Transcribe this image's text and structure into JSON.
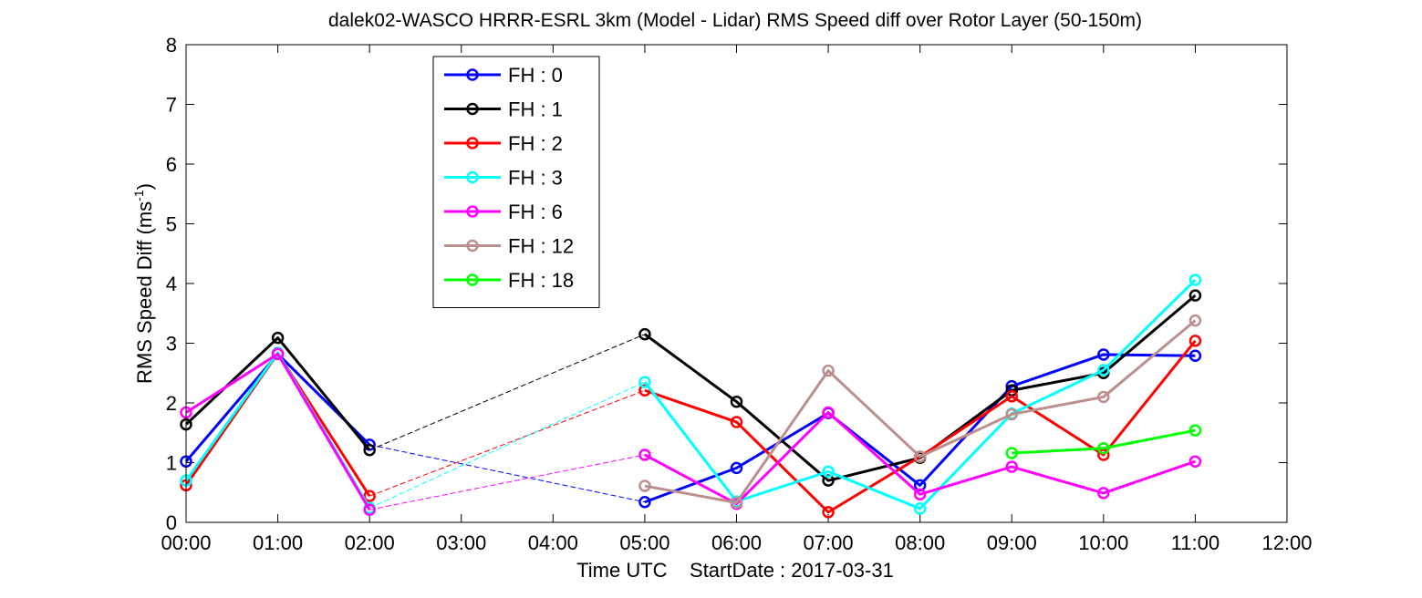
{
  "chart_data": {
    "type": "line",
    "title": "dalek02-WASCO HRRR-ESRL 3km (Model - Lidar) RMS Speed diff over Rotor Layer (50-150m)",
    "xlabel": "Time UTC    StartDate : 2017-03-31",
    "ylabel": "RMS Speed Diff (ms",
    "ylabel_sup": "-1",
    "ylabel_end": ")",
    "x_tick_labels": [
      "00:00",
      "01:00",
      "02:00",
      "03:00",
      "04:00",
      "05:00",
      "06:00",
      "07:00",
      "08:00",
      "09:00",
      "10:00",
      "11:00",
      "12:00"
    ],
    "y_tick_labels": [
      "0",
      "1",
      "2",
      "3",
      "4",
      "5",
      "6",
      "7",
      "8"
    ],
    "xlim": [
      0,
      12
    ],
    "ylim": [
      0,
      8
    ],
    "grid": false,
    "legend_position": "top-left",
    "series": [
      {
        "name": "FH : 0",
        "color": "#0000ff",
        "x": [
          0,
          1,
          2,
          5,
          6,
          7,
          8,
          9,
          10,
          11
        ],
        "y": [
          1.02,
          2.82,
          1.3,
          0.34,
          0.91,
          1.83,
          0.62,
          2.28,
          2.81,
          2.79
        ]
      },
      {
        "name": "FH : 1",
        "color": "#000000",
        "x": [
          0,
          1,
          2,
          5,
          6,
          7,
          8,
          9,
          10,
          11
        ],
        "y": [
          1.64,
          3.09,
          1.21,
          3.15,
          2.02,
          0.7,
          1.08,
          2.21,
          2.5,
          3.8
        ]
      },
      {
        "name": "FH : 2",
        "color": "#ff0000",
        "x": [
          0,
          1,
          2,
          5,
          6,
          7,
          8,
          9,
          10,
          11
        ],
        "y": [
          0.62,
          2.83,
          0.44,
          2.21,
          1.68,
          0.17,
          1.1,
          2.11,
          1.13,
          3.04
        ]
      },
      {
        "name": "FH : 3",
        "color": "#00ffff",
        "x": [
          0,
          1,
          2,
          5,
          6,
          7,
          8,
          9,
          10,
          11
        ],
        "y": [
          0.7,
          2.84,
          0.24,
          2.35,
          0.35,
          0.85,
          0.23,
          1.82,
          2.55,
          4.06
        ]
      },
      {
        "name": "FH : 6",
        "color": "#ff00ff",
        "x": [
          0,
          1,
          2,
          5,
          6,
          7,
          8,
          9,
          10,
          11
        ],
        "y": [
          1.84,
          2.82,
          0.21,
          1.13,
          0.31,
          1.84,
          0.47,
          0.93,
          0.49,
          1.02
        ]
      },
      {
        "name": "FH : 12",
        "color": "#bc8f8f",
        "x": [
          5,
          6,
          7,
          8,
          9,
          10,
          11
        ],
        "y": [
          0.61,
          0.33,
          2.54,
          1.1,
          1.81,
          2.1,
          3.38
        ]
      },
      {
        "name": "FH : 18",
        "color": "#00ff00",
        "x": [
          9,
          10,
          11
        ],
        "y": [
          1.16,
          1.24,
          1.54
        ]
      }
    ],
    "gap_connectors": [
      {
        "series": "FH : 0",
        "from_x": 2,
        "to_x": 5
      },
      {
        "series": "FH : 1",
        "from_x": 2,
        "to_x": 5
      },
      {
        "series": "FH : 2",
        "from_x": 2,
        "to_x": 5
      },
      {
        "series": "FH : 3",
        "from_x": 2,
        "to_x": 5
      },
      {
        "series": "FH : 6",
        "from_x": 2,
        "to_x": 5
      }
    ]
  }
}
